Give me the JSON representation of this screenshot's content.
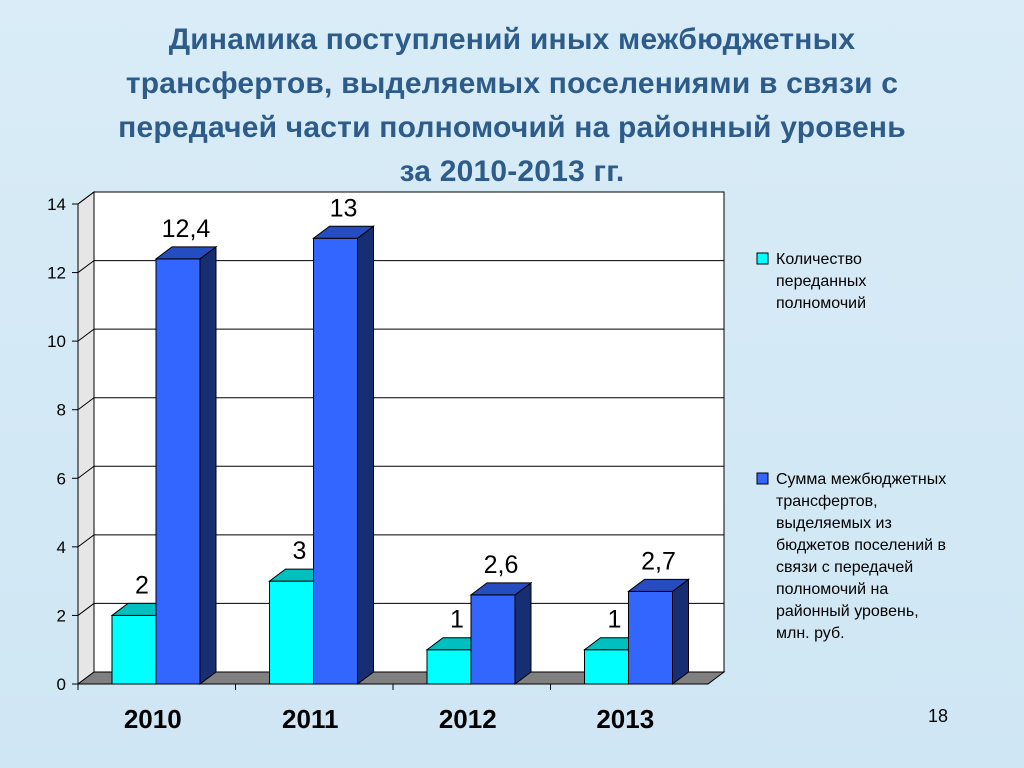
{
  "title": "Динамика поступлений иных межбюджетных трансфертов, выделяемых поселениями в связи с передачей части полномочий на районный уровень за 2010-2013 гг.",
  "title_lines": [
    "Динамика поступлений иных межбюджетных",
    "трансфертов, выделяемых поселениями в связи с",
    "передачей части полномочий на районный уровень",
    "за 2010-2013 гг."
  ],
  "page_number": "18",
  "colors": {
    "series1": "#00ffff",
    "series2": "#3366ff",
    "title": "#2e5c8a",
    "background": "#d9ecf7"
  },
  "chart_data": {
    "type": "bar",
    "categories": [
      "2010",
      "2011",
      "2012",
      "2013"
    ],
    "series": [
      {
        "name": "Количество переданных полномочий",
        "legend_lines": [
          "Количество",
          "переданных",
          "полномочий"
        ],
        "values": [
          2,
          3,
          1,
          1
        ],
        "labels": [
          "2",
          "3",
          "1",
          "1"
        ]
      },
      {
        "name": "Сумма межбюджетных трансфертов, выделяемых из бюджетов поселений в связи с передачей полномочий на районный уровень, млн. руб.",
        "legend_lines": [
          "Сумма межбюджетных",
          "трансфертов,",
          "выделяемых из",
          "бюджетов поселений в",
          "связи с передачей",
          "полномочий на",
          "районный уровень,",
          "млн. руб."
        ],
        "values": [
          12.4,
          13,
          2.6,
          2.7
        ],
        "labels": [
          "12,4",
          "13",
          "2,6",
          "2,7"
        ]
      }
    ],
    "ylim": [
      0,
      14
    ],
    "yticks": [
      0,
      2,
      4,
      6,
      8,
      10,
      12,
      14
    ],
    "grid": true,
    "legend_position": "right",
    "style": "3d-clustered-column"
  }
}
